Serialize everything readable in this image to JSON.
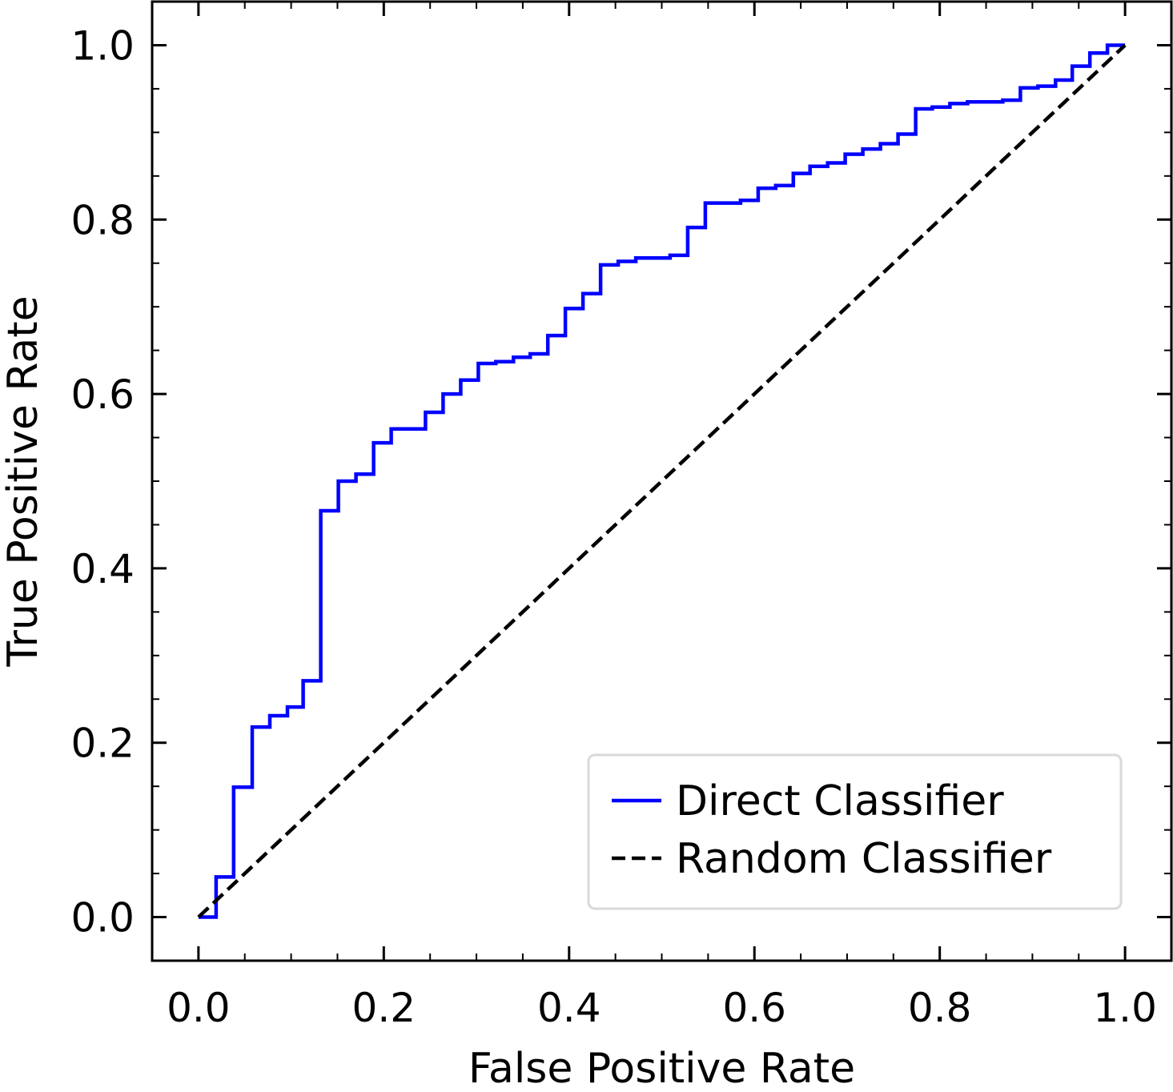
{
  "chart_data": {
    "type": "line",
    "title": "",
    "xlabel": "False Positive Rate",
    "ylabel": "True Positive Rate",
    "xlim": [
      -0.05,
      1.05
    ],
    "ylim": [
      -0.05,
      1.05
    ],
    "xticks": [
      0.0,
      0.2,
      0.4,
      0.6,
      0.8,
      1.0
    ],
    "yticks": [
      0.0,
      0.2,
      0.4,
      0.6,
      0.8,
      1.0
    ],
    "xtick_labels": [
      "0.0",
      "0.2",
      "0.4",
      "0.6",
      "0.8",
      "1.0"
    ],
    "ytick_labels": [
      "0.0",
      "0.2",
      "0.4",
      "0.6",
      "0.8",
      "1.0"
    ],
    "minor_ticks": true,
    "grid": false,
    "legend_position": "lower-right",
    "series": [
      {
        "name": "Direct Classifier",
        "color": "#0000ff",
        "style": "solid",
        "step": true,
        "x": [
          0.0,
          0.019,
          0.019,
          0.038,
          0.038,
          0.058,
          0.058,
          0.077,
          0.077,
          0.096,
          0.096,
          0.113,
          0.113,
          0.132,
          0.132,
          0.151,
          0.151,
          0.17,
          0.17,
          0.189,
          0.189,
          0.208,
          0.208,
          0.245,
          0.245,
          0.264,
          0.264,
          0.283,
          0.283,
          0.302,
          0.302,
          0.321,
          0.321,
          0.34,
          0.34,
          0.358,
          0.358,
          0.377,
          0.377,
          0.396,
          0.396,
          0.415,
          0.415,
          0.434,
          0.434,
          0.453,
          0.453,
          0.472,
          0.472,
          0.509,
          0.509,
          0.528,
          0.528,
          0.547,
          0.547,
          0.585,
          0.585,
          0.604,
          0.604,
          0.623,
          0.623,
          0.642,
          0.642,
          0.66,
          0.66,
          0.679,
          0.679,
          0.698,
          0.698,
          0.717,
          0.717,
          0.736,
          0.736,
          0.755,
          0.755,
          0.774,
          0.774,
          0.792,
          0.792,
          0.811,
          0.811,
          0.83,
          0.83,
          0.868,
          0.868,
          0.887,
          0.887,
          0.906,
          0.906,
          0.925,
          0.925,
          0.943,
          0.943,
          0.962,
          0.962,
          0.981,
          0.981,
          1.0
        ],
        "y": [
          0.0,
          0.0,
          0.046,
          0.046,
          0.149,
          0.149,
          0.218,
          0.218,
          0.231,
          0.231,
          0.241,
          0.241,
          0.271,
          0.271,
          0.466,
          0.466,
          0.5,
          0.5,
          0.508,
          0.508,
          0.544,
          0.544,
          0.56,
          0.56,
          0.579,
          0.579,
          0.6,
          0.6,
          0.616,
          0.616,
          0.635,
          0.635,
          0.637,
          0.637,
          0.642,
          0.642,
          0.646,
          0.646,
          0.667,
          0.667,
          0.698,
          0.698,
          0.715,
          0.715,
          0.748,
          0.748,
          0.752,
          0.752,
          0.756,
          0.756,
          0.759,
          0.759,
          0.791,
          0.791,
          0.819,
          0.819,
          0.822,
          0.822,
          0.836,
          0.836,
          0.839,
          0.839,
          0.853,
          0.853,
          0.861,
          0.861,
          0.865,
          0.865,
          0.875,
          0.875,
          0.881,
          0.881,
          0.887,
          0.887,
          0.898,
          0.898,
          0.927,
          0.927,
          0.929,
          0.929,
          0.933,
          0.933,
          0.935,
          0.935,
          0.937,
          0.937,
          0.951,
          0.951,
          0.953,
          0.953,
          0.96,
          0.96,
          0.976,
          0.976,
          0.991,
          0.991,
          1.0,
          1.0
        ]
      },
      {
        "name": "Random Classifier",
        "color": "#000000",
        "style": "dashed",
        "step": false,
        "x": [
          0.0,
          1.0
        ],
        "y": [
          0.0,
          1.0
        ]
      }
    ]
  }
}
